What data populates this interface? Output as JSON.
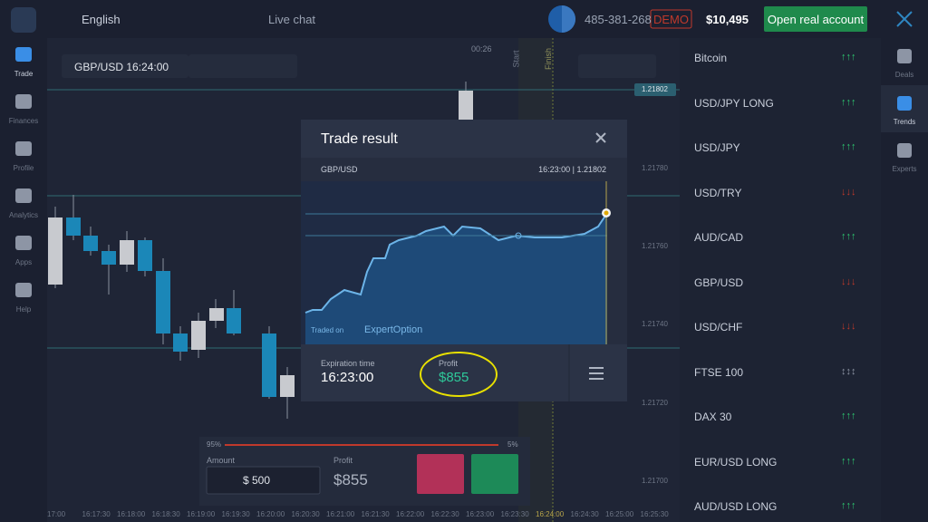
{
  "topbar": {
    "language": "English",
    "live_chat": "Live chat",
    "account_id": "485-381-268",
    "mode": "DEMO",
    "balance": "$10,495",
    "open_real": "Open real account"
  },
  "sidebar": [
    "Trade",
    "Finances",
    "Profile",
    "Analytics",
    "Apps",
    "Help"
  ],
  "chart": {
    "pair": "GBP/USD 16:24:00",
    "timer": "00:26",
    "start": "Start",
    "finish": "Finish",
    "price_labels": [
      "1.21802",
      "1.21780",
      "1.21760",
      "1.21740",
      "1.21720",
      "1.21700"
    ],
    "time_labels": [
      "17:00",
      "16:17:30",
      "16:18:00",
      "16:18:30",
      "16:19:00",
      "16:19:30",
      "16:20:00",
      "16:20:30",
      "16:21:00",
      "16:21:30",
      "16:22:00",
      "16:22:30",
      "16:23:00",
      "16:23:30",
      "16:24:00",
      "16:24:30",
      "16:25:00",
      "16:25:30"
    ]
  },
  "modal": {
    "title": "Trade result",
    "pair": "GBP/USD",
    "time_price": "16:23:00 | 1.21802",
    "traded_on": "Traded on",
    "brand": "ExpertOption",
    "expiration_label": "Expiration time",
    "expiration": "16:23:00",
    "profit_label": "Profit",
    "profit": "$855"
  },
  "trade_panel": {
    "pct_left": "95%",
    "pct_right": "5%",
    "amount_label": "Amount",
    "amount": "$ 500",
    "profit_label": "Profit",
    "profit": "$855"
  },
  "assets": [
    {
      "name": "Bitcoin",
      "trend": "up"
    },
    {
      "name": "USD/JPY LONG",
      "trend": "up"
    },
    {
      "name": "USD/JPY",
      "trend": "up"
    },
    {
      "name": "USD/TRY",
      "trend": "down"
    },
    {
      "name": "AUD/CAD",
      "trend": "up"
    },
    {
      "name": "GBP/USD",
      "trend": "down"
    },
    {
      "name": "USD/CHF",
      "trend": "down"
    },
    {
      "name": "FTSE 100",
      "trend": "flat"
    },
    {
      "name": "DAX 30",
      "trend": "up"
    },
    {
      "name": "EUR/USD LONG",
      "trend": "up"
    },
    {
      "name": "AUD/USD LONG",
      "trend": "up"
    }
  ],
  "right_nav": [
    "Deals",
    "Trends",
    "Experts"
  ]
}
